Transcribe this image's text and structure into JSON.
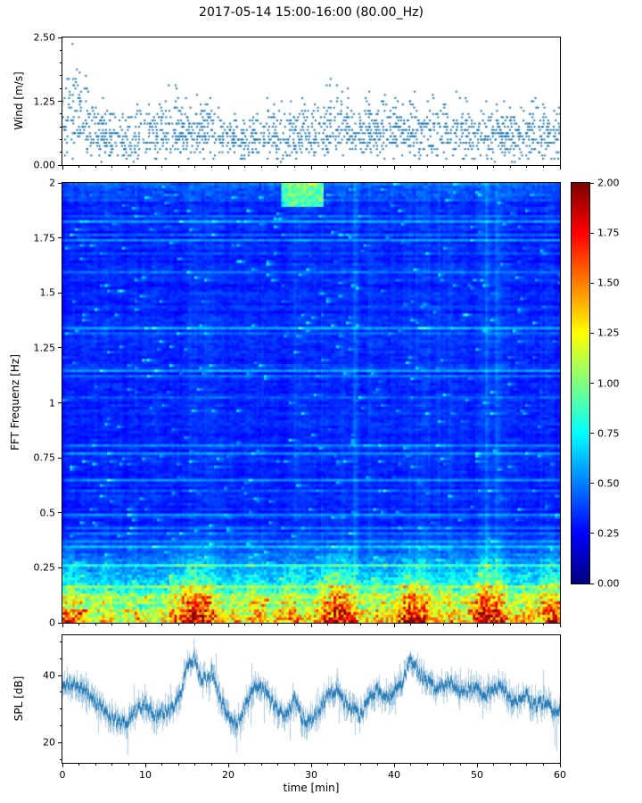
{
  "title": "2017-05-14 15:00-16:00 (80.00_Hz)",
  "xlabel": "time [min]",
  "x_ticks": [
    0,
    10,
    20,
    30,
    40,
    50,
    60
  ],
  "x_tick_labels": [
    "0",
    "10",
    "20",
    "30",
    "40",
    "50",
    "60"
  ],
  "colorbar": {
    "colormap": "jet",
    "clim": [
      0,
      2
    ],
    "ticks": [
      2.0,
      1.75,
      1.5,
      1.25,
      1.0,
      0.75,
      0.5,
      0.25,
      0.0
    ],
    "tick_labels": [
      "2.00",
      "1.75",
      "1.50",
      "1.25",
      "1.00",
      "0.75",
      "0.50",
      "0.25",
      "0.00"
    ]
  },
  "chart_data": [
    {
      "type": "scatter",
      "name": "wind-speed",
      "ylabel": "Wind [m/s]",
      "xlim": [
        0,
        60
      ],
      "ylim": [
        0,
        2.5
      ],
      "yticks": [
        2.5,
        1.25,
        0.0
      ],
      "ytick_labels": [
        "2.50",
        "1.25",
        "0.00"
      ],
      "ytick_minor_step": 0.25,
      "marker_color": "#1f77b4",
      "n_points": 1700,
      "quantization_step": 0.0625,
      "seed": 42,
      "envelope_points": [
        [
          0,
          1.9
        ],
        [
          1,
          2.5
        ],
        [
          2,
          2.3
        ],
        [
          3,
          1.7
        ],
        [
          4,
          1.45
        ],
        [
          6,
          1.3
        ],
        [
          8,
          1.25
        ],
        [
          10,
          1.3
        ],
        [
          12,
          1.5
        ],
        [
          13,
          1.65
        ],
        [
          14,
          1.5
        ],
        [
          16,
          1.35
        ],
        [
          18,
          1.4
        ],
        [
          20,
          1.25
        ],
        [
          22,
          1.3
        ],
        [
          23,
          1.45
        ],
        [
          24,
          1.3
        ],
        [
          26,
          1.25
        ],
        [
          28,
          1.35
        ],
        [
          30,
          1.35
        ],
        [
          31,
          1.5
        ],
        [
          32,
          1.6
        ],
        [
          33,
          1.85
        ],
        [
          34,
          1.6
        ],
        [
          35,
          1.45
        ],
        [
          36,
          1.5
        ],
        [
          37,
          1.65
        ],
        [
          38,
          1.5
        ],
        [
          40,
          1.45
        ],
        [
          41,
          1.55
        ],
        [
          42,
          1.6
        ],
        [
          43,
          1.45
        ],
        [
          44,
          1.35
        ],
        [
          45,
          1.4
        ],
        [
          46,
          1.5
        ],
        [
          47,
          1.55
        ],
        [
          48,
          1.4
        ],
        [
          50,
          1.35
        ],
        [
          52,
          1.3
        ],
        [
          53,
          1.4
        ],
        [
          54,
          1.3
        ],
        [
          56,
          1.35
        ],
        [
          57,
          1.45
        ],
        [
          58,
          1.5
        ],
        [
          59,
          1.35
        ],
        [
          60,
          1.3
        ]
      ],
      "description": "Quantized wind-speed samples; dense band 0.2-1.0 m/s across the hour, maximum ~2.5 m/s near t=1-2 min, secondary high values near t=13 and t=33 min."
    },
    {
      "type": "heatmap",
      "name": "fft-spectrogram",
      "ylabel": "FFT Frequenz [Hz]",
      "xlim": [
        0,
        60
      ],
      "ylim": [
        0,
        2
      ],
      "clim": [
        0,
        2
      ],
      "yticks": [
        2,
        1.75,
        1.5,
        1.25,
        1,
        0.75,
        0.5,
        0.25,
        0
      ],
      "ytick_labels": [
        "2",
        "1.75",
        "1.5",
        "1.25",
        "1",
        "0.75",
        "0.5",
        "0.25",
        "0"
      ],
      "colormap": "jet",
      "cols": 200,
      "rows": 165,
      "seed": 7,
      "base_level": 0.22,
      "lowfreq_cutoff": 0.45,
      "lowfreq_profile": [
        [
          0,
          0.8
        ],
        [
          2,
          0.7
        ],
        [
          4,
          0.5
        ],
        [
          5,
          0.65
        ],
        [
          7,
          0.5
        ],
        [
          8,
          0.6
        ],
        [
          10,
          0.5
        ],
        [
          12,
          0.55
        ],
        [
          14,
          0.8
        ],
        [
          15,
          0.95
        ],
        [
          16,
          1.0
        ],
        [
          17,
          0.9
        ],
        [
          18,
          0.8
        ],
        [
          19,
          0.6
        ],
        [
          20,
          0.55
        ],
        [
          21,
          0.65
        ],
        [
          22,
          0.55
        ],
        [
          23,
          0.75
        ],
        [
          24,
          0.7
        ],
        [
          25,
          0.55
        ],
        [
          26,
          0.6
        ],
        [
          27,
          0.75
        ],
        [
          28,
          0.7
        ],
        [
          29,
          0.55
        ],
        [
          30,
          0.6
        ],
        [
          31,
          0.7
        ],
        [
          32,
          0.85
        ],
        [
          33,
          1.0
        ],
        [
          34,
          0.95
        ],
        [
          35,
          0.8
        ],
        [
          36,
          0.6
        ],
        [
          37,
          0.6
        ],
        [
          38,
          0.7
        ],
        [
          39,
          0.6
        ],
        [
          40,
          0.65
        ],
        [
          41,
          0.85
        ],
        [
          42,
          1.0
        ],
        [
          43,
          0.95
        ],
        [
          44,
          0.85
        ],
        [
          45,
          0.6
        ],
        [
          46,
          0.6
        ],
        [
          47,
          0.7
        ],
        [
          48,
          0.6
        ],
        [
          49,
          0.65
        ],
        [
          50,
          0.85
        ],
        [
          51,
          1.0
        ],
        [
          52,
          0.95
        ],
        [
          53,
          0.85
        ],
        [
          54,
          0.6
        ],
        [
          55,
          0.6
        ],
        [
          56,
          0.7
        ],
        [
          57,
          0.6
        ],
        [
          58,
          0.8
        ],
        [
          59,
          0.9
        ],
        [
          60,
          0.85
        ]
      ],
      "top_band": {
        "t0": 26.5,
        "t1": 31.5,
        "f0": 1.9,
        "f1": 2.0,
        "level": 0.55
      },
      "description": "Mostly dark-blue noise (0.1-0.35) with brighter horizontal streaks; strong energy (0.6-2.0, yellow to dark red) below ~0.3 Hz with bursts near t=15-17, 33, 42, 51 min; cyan patch near 1.95 Hz around t=27-31 min."
    },
    {
      "type": "line",
      "name": "spl",
      "ylabel": "SPL [dB]",
      "xlim": [
        0,
        60
      ],
      "ylim": [
        14,
        52
      ],
      "yticks": [
        40,
        20
      ],
      "ytick_labels": [
        "40",
        "20"
      ],
      "ytick_minors": [
        15,
        25,
        30,
        35,
        45,
        50
      ],
      "line_color": "#1f77b4",
      "seed": 11,
      "noise_db": 4,
      "control_points": [
        [
          0,
          37
        ],
        [
          1,
          38
        ],
        [
          2,
          37
        ],
        [
          3,
          35
        ],
        [
          4,
          32
        ],
        [
          5,
          30
        ],
        [
          6,
          27
        ],
        [
          7,
          26
        ],
        [
          8,
          27
        ],
        [
          9,
          30
        ],
        [
          10,
          32
        ],
        [
          11,
          28
        ],
        [
          12,
          29
        ],
        [
          13,
          30
        ],
        [
          14,
          33
        ],
        [
          15,
          42
        ],
        [
          15.8,
          45
        ],
        [
          16.5,
          40
        ],
        [
          17.5,
          38
        ],
        [
          18,
          41
        ],
        [
          19,
          33
        ],
        [
          20,
          28
        ],
        [
          21,
          26
        ],
        [
          22,
          30
        ],
        [
          23,
          37
        ],
        [
          24,
          36
        ],
        [
          25,
          33
        ],
        [
          26,
          30
        ],
        [
          27,
          28
        ],
        [
          28,
          33
        ],
        [
          29,
          27
        ],
        [
          30,
          26
        ],
        [
          31,
          30
        ],
        [
          32,
          34
        ],
        [
          33,
          36
        ],
        [
          34,
          32
        ],
        [
          35,
          30
        ],
        [
          36,
          28
        ],
        [
          37,
          34
        ],
        [
          38,
          36
        ],
        [
          39,
          33
        ],
        [
          40,
          35
        ],
        [
          41,
          38
        ],
        [
          42,
          45
        ],
        [
          43,
          41
        ],
        [
          44,
          38
        ],
        [
          45,
          36
        ],
        [
          46,
          37
        ],
        [
          47,
          38
        ],
        [
          48,
          35
        ],
        [
          49,
          36
        ],
        [
          50,
          36
        ],
        [
          51,
          34
        ],
        [
          52,
          36
        ],
        [
          53,
          37
        ],
        [
          54,
          33
        ],
        [
          55,
          32
        ],
        [
          56,
          34
        ],
        [
          57,
          31
        ],
        [
          58,
          32
        ],
        [
          59,
          30
        ],
        [
          60,
          29
        ]
      ],
      "description": "Noisy sound-pressure-level trace around 26-38 dB with prominent peaks ~45-48 dB near t=15-16 and t=42 min, dips ~22-25 dB near t=6-8, 20-21 and 29-30 min."
    }
  ]
}
